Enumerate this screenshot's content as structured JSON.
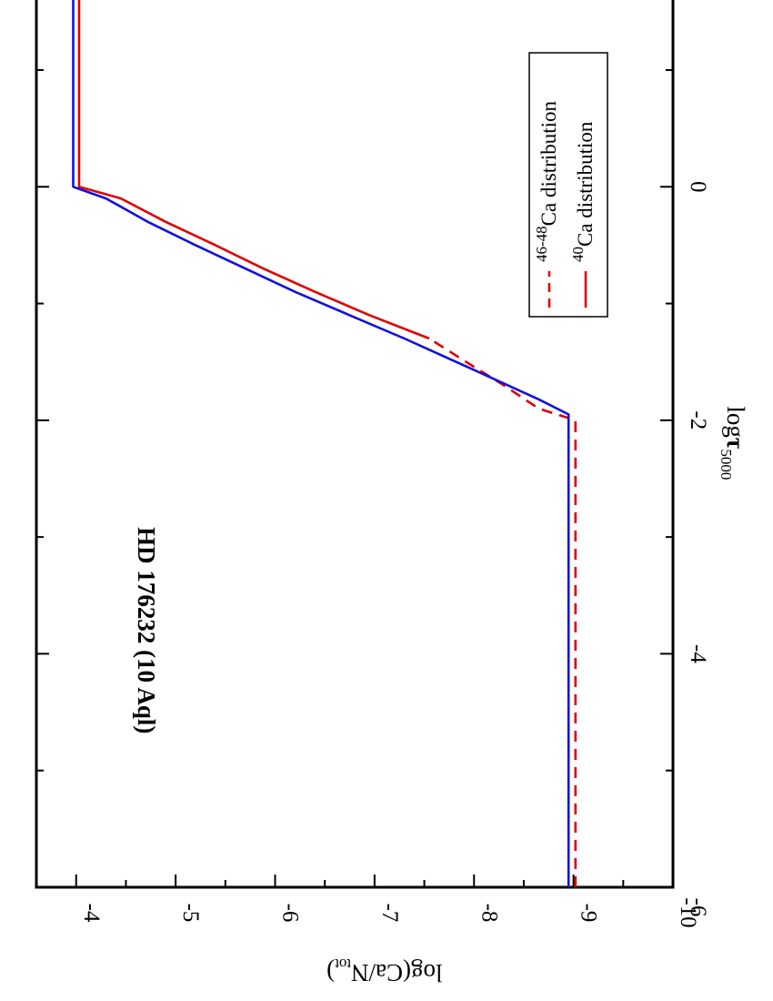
{
  "chart_data": {
    "type": "line",
    "orientation": "rotated-90-clockwise",
    "title": "",
    "annotation": "HD 176232 (10 Aql)",
    "xlabel": {
      "main": "log",
      "tau": "τ",
      "sub": "5000"
    },
    "ylabel": {
      "prefix": "log(Ca/N",
      "sub": "tot",
      "suffix": ")"
    },
    "xlim": [
      -6,
      1.6
    ],
    "ylim": [
      -10,
      -3.6
    ],
    "x_ticks": [
      "-6",
      "-4",
      "-2",
      "0"
    ],
    "y_ticks": [
      "-10",
      "-9",
      "-8",
      "-7",
      "-6",
      "-5",
      "-4"
    ],
    "grid": false,
    "legend": {
      "placement": "top-right",
      "entries": [
        {
          "sup": "46-48",
          "text": "Ca distribution",
          "style": "dashed",
          "color": "#e00000"
        },
        {
          "sup": "40",
          "text": "Ca distribution",
          "style": "solid",
          "color": "#e00000"
        }
      ]
    },
    "series": [
      {
        "name": "46-48Ca distribution",
        "color": "#e00000",
        "dash": "dashed",
        "x": [
          -6,
          -2.0,
          -1.9,
          -1.7,
          -1.5,
          -1.3
        ],
        "y": [
          -9.02,
          -9.02,
          -8.65,
          -8.3,
          -7.92,
          -7.55
        ]
      },
      {
        "name": "40Ca distribution",
        "color": "#e00000",
        "dash": "solid",
        "x": [
          -1.3,
          -1.1,
          -0.9,
          -0.7,
          -0.5,
          -0.3,
          -0.1,
          0.0,
          1.6
        ],
        "y": [
          -7.55,
          -6.95,
          -6.4,
          -5.88,
          -5.4,
          -4.9,
          -4.45,
          -4.03,
          -4.03
        ]
      },
      {
        "name": "blue",
        "color": "#1010e0",
        "dash": "solid",
        "x": [
          -6,
          -1.95,
          -1.82,
          -1.55,
          -1.3,
          -1.1,
          -0.9,
          -0.7,
          -0.5,
          -0.3,
          -0.1,
          0.0,
          1.6
        ],
        "y": [
          -8.95,
          -8.95,
          -8.65,
          -7.95,
          -7.3,
          -6.75,
          -6.2,
          -5.7,
          -5.2,
          -4.72,
          -4.3,
          -3.97,
          -3.97
        ]
      }
    ]
  }
}
